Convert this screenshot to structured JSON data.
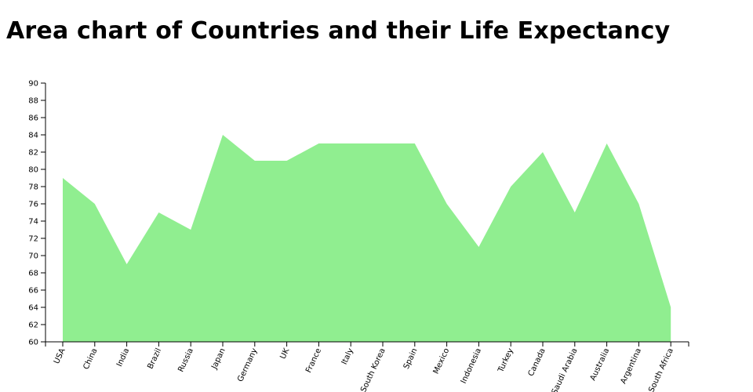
{
  "title": "Area chart of Countries and their Life Expectancy",
  "chart_data": {
    "type": "area",
    "title": "Area chart of Countries and their Life Expectancy",
    "xlabel": "",
    "ylabel": "",
    "categories": [
      "USA",
      "China",
      "India",
      "Brazil",
      "Russia",
      "Japan",
      "Germany",
      "UK",
      "France",
      "Italy",
      "South Korea",
      "Spain",
      "Mexico",
      "Indonesia",
      "Turkey",
      "Canada",
      "Saudi Arabia",
      "Australia",
      "Argentina",
      "South Africa"
    ],
    "series": [
      {
        "values": [
          79,
          76,
          69,
          75,
          73,
          84,
          81,
          81,
          83,
          83,
          83,
          83,
          76,
          71,
          78,
          82,
          75,
          83,
          76,
          64
        ]
      }
    ],
    "ylim": [
      60,
      90
    ],
    "yticks": [
      60,
      62,
      64,
      66,
      68,
      70,
      72,
      74,
      76,
      78,
      80,
      82,
      84,
      86,
      88,
      90
    ],
    "grid": false,
    "legend": "none",
    "fill_color": "#90ee90"
  }
}
